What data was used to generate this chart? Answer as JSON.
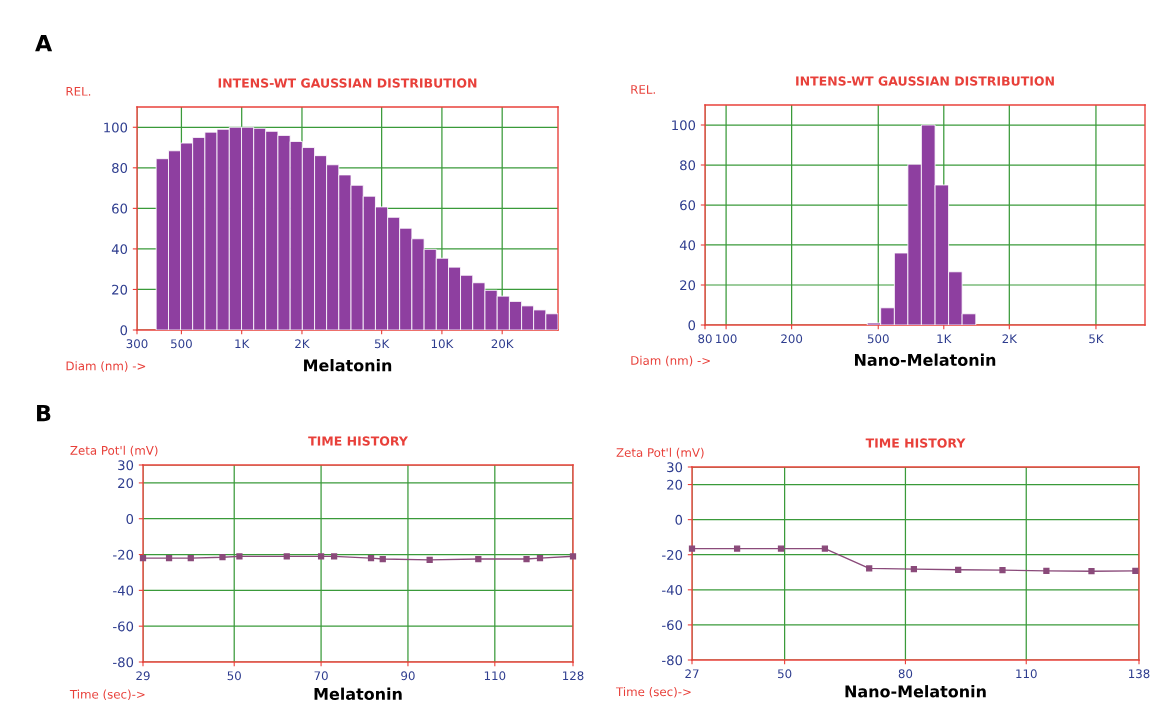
{
  "chart_data": [
    {
      "type": "histogram",
      "title": "INTENS-WT GAUSSIAN DISTRIBUTION",
      "ylabel": "REL.",
      "xlabel": "Diam (nm) ->",
      "subtitle": "Melatonin",
      "annotations": [
        "A"
      ],
      "log": "x",
      "grid": true,
      "color": "#8e3fa0",
      "bins": [
        374,
        431,
        495,
        569,
        655,
        753,
        867,
        998,
        1148,
        1318,
        1517,
        1746,
        2009,
        2312,
        2655,
        3055,
        3516,
        4046,
        4656,
        5358,
        6152,
        7079,
        8147,
        9376,
        10789,
        12388,
        14256,
        16406,
        18880,
        21727,
        25003,
        28708,
        33037,
        38000
      ],
      "values": [
        84.5,
        88.4,
        92.2,
        95,
        97.6,
        99,
        100,
        100,
        99.5,
        98,
        96,
        93,
        90,
        86,
        81.5,
        76.5,
        71.4,
        66,
        60.7,
        55.6,
        50.2,
        45,
        39.8,
        35.4,
        31,
        27,
        23.3,
        19.6,
        16.7,
        14.1,
        11.9,
        9.9,
        8
      ],
      "xlim": [
        300,
        38000
      ],
      "xticks": [
        300,
        500,
        {
          "value": 1000,
          "label": "1K"
        },
        {
          "value": 2000,
          "label": "2K"
        },
        {
          "value": 5000,
          "label": "5K"
        },
        {
          "value": 10000,
          "label": "10K"
        },
        {
          "value": 20000,
          "label": "20K"
        }
      ],
      "ylim": [
        0,
        110
      ],
      "yticks": [
        0,
        20,
        40,
        60,
        80,
        100
      ]
    },
    {
      "type": "histogram",
      "title": "INTENS-WT GAUSSIAN DISTRIBUTION",
      "ylabel": "REL.",
      "xlabel": "Diam (nm) ->",
      "subtitle": "Nano-Melatonin",
      "log": "x",
      "grid": true,
      "color": "#8e3fa0",
      "bins": [
        445,
        513,
        593,
        684,
        789,
        912,
        1052,
        1214,
        1403,
        1618
      ],
      "values": [
        1,
        8.6,
        36,
        80.4,
        100,
        70,
        26.6,
        5.6,
        null
      ],
      "xlim": [
        80,
        8400
      ],
      "xticks": [
        80,
        100,
        200,
        500,
        {
          "value": 1000,
          "label": "1K"
        },
        {
          "value": 2000,
          "label": "2K"
        },
        {
          "value": 5000,
          "label": "5K"
        }
      ],
      "ylim": [
        0,
        110
      ],
      "yticks": [
        0,
        20,
        40,
        60,
        80,
        100
      ]
    },
    {
      "type": "line",
      "title": "TIME HISTORY",
      "ylabel": "Zeta Pot'l (mV)",
      "xlabel": "Time (sec)->",
      "subtitle": "Melatonin",
      "annotations": [
        "B"
      ],
      "grid": true,
      "marker": "square",
      "line_style": "solid",
      "series": [
        {
          "color": "#8a4a7a",
          "x": [
            29,
            35,
            40,
            47.3,
            51.2,
            62.1,
            70,
            73,
            81.5,
            84.2,
            95,
            106.2,
            117.3,
            120.4,
            128
          ],
          "values": [
            -22,
            -22,
            -22,
            -21.5,
            -21,
            -21,
            -21,
            -21,
            -22,
            -22.5,
            -23,
            -22.5,
            -22.5,
            -22,
            -21
          ]
        }
      ],
      "xlim": [
        29,
        128
      ],
      "xticks": [
        29,
        50,
        70,
        90,
        110,
        128
      ],
      "ylim": [
        -80,
        30
      ],
      "yticks": [
        -80,
        -60,
        -40,
        -20,
        0,
        20,
        30
      ]
    },
    {
      "type": "line",
      "title": "TIME HISTORY",
      "ylabel": "Zeta Pot'l (mV)",
      "xlabel": "Time (sec)->",
      "subtitle": "Nano-Melatonin",
      "grid": true,
      "marker": "square",
      "line_style": "solid",
      "series": [
        {
          "color": "#8a4a7a",
          "x": [
            27,
            38.2,
            49.1,
            60,
            71,
            82.1,
            93.1,
            104.1,
            115,
            126.2,
            137.1
          ],
          "values": [
            -16.5,
            -16.5,
            -16.5,
            -16.5,
            -27.8,
            -28.2,
            -28.6,
            -28.8,
            -29.2,
            -29.4,
            -29.2
          ]
        }
      ],
      "xlim": [
        27,
        138
      ],
      "xticks": [
        27,
        50,
        80,
        110,
        138
      ],
      "ylim": [
        -80,
        30
      ],
      "yticks": [
        -80,
        -60,
        -40,
        -20,
        0,
        20,
        30
      ]
    }
  ]
}
